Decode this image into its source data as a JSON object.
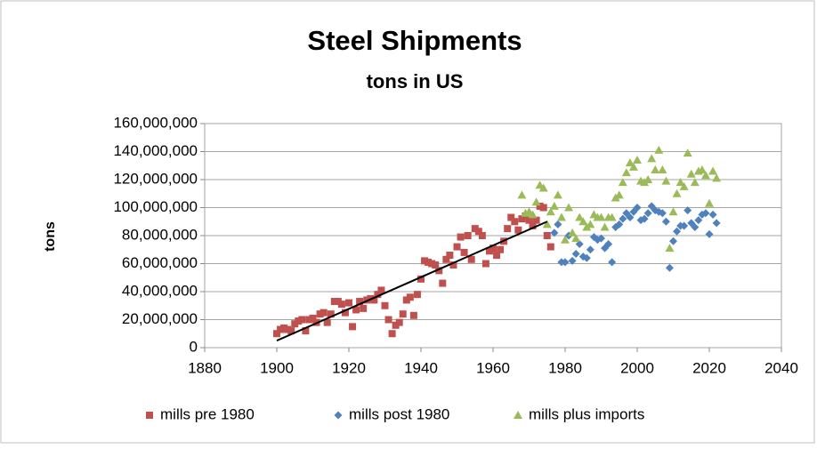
{
  "chart_data": {
    "type": "scatter",
    "title": "Steel Shipments",
    "subtitle": "tons in US",
    "y_label": "tons",
    "xlim": [
      1880,
      2040
    ],
    "xticks": [
      1880,
      1900,
      1920,
      1940,
      1960,
      1980,
      2000,
      2020,
      2040
    ],
    "ylim": [
      0,
      160000000
    ],
    "yticks": [
      {
        "value": 0,
        "label": "0"
      },
      {
        "value": 20000000,
        "label": "20,000,000"
      },
      {
        "value": 40000000,
        "label": "40,000,000"
      },
      {
        "value": 60000000,
        "label": "60,000,000"
      },
      {
        "value": 80000000,
        "label": "80,000,000"
      },
      {
        "value": 100000000,
        "label": "100,000,000"
      },
      {
        "value": 120000000,
        "label": "120,000,000"
      },
      {
        "value": 140000000,
        "label": "140,000,000"
      },
      {
        "value": 160000000,
        "label": "160,000,000"
      }
    ],
    "grid": true,
    "legend": "bottom",
    "series": [
      {
        "name": "mills pre 1980",
        "color": "#c0504d",
        "marker": "square",
        "x": [
          1900,
          1901,
          1902,
          1903,
          1904,
          1905,
          1906,
          1907,
          1908,
          1909,
          1910,
          1911,
          1912,
          1913,
          1914,
          1915,
          1916,
          1917,
          1918,
          1919,
          1920,
          1921,
          1922,
          1923,
          1924,
          1925,
          1926,
          1927,
          1928,
          1929,
          1930,
          1931,
          1932,
          1933,
          1934,
          1935,
          1936,
          1937,
          1938,
          1939,
          1940,
          1941,
          1942,
          1943,
          1944,
          1945,
          1946,
          1947,
          1948,
          1949,
          1950,
          1951,
          1952,
          1953,
          1954,
          1955,
          1956,
          1957,
          1958,
          1959,
          1960,
          1961,
          1962,
          1963,
          1964,
          1965,
          1966,
          1967,
          1968,
          1969,
          1970,
          1971,
          1972,
          1973,
          1974,
          1975,
          1976
        ],
        "values": [
          10000000,
          13000000,
          14000000,
          13000000,
          12000000,
          17000000,
          19000000,
          20000000,
          12000000,
          20000000,
          21000000,
          18000000,
          24000000,
          25000000,
          18000000,
          24000000,
          33000000,
          33000000,
          31000000,
          25000000,
          32000000,
          15000000,
          27000000,
          33000000,
          28000000,
          34000000,
          35000000,
          34000000,
          38000000,
          41000000,
          30000000,
          20000000,
          10000000,
          16000000,
          18000000,
          24000000,
          34000000,
          36000000,
          23000000,
          38000000,
          49000000,
          62000000,
          61000000,
          60000000,
          59000000,
          55000000,
          46000000,
          63000000,
          66000000,
          59000000,
          72000000,
          79000000,
          68000000,
          80000000,
          63000000,
          85000000,
          83000000,
          80000000,
          60000000,
          69000000,
          71000000,
          66000000,
          70000000,
          76000000,
          85000000,
          93000000,
          90000000,
          84000000,
          92000000,
          94000000,
          91000000,
          87000000,
          91000000,
          101000000,
          100000000,
          80000000,
          72000000
        ]
      },
      {
        "name": "mills post 1980",
        "color": "#4f81bd",
        "marker": "diamond",
        "x": [
          1977,
          1978,
          1979,
          1980,
          1981,
          1982,
          1983,
          1984,
          1985,
          1986,
          1987,
          1988,
          1989,
          1990,
          1991,
          1992,
          1993,
          1994,
          1995,
          1996,
          1997,
          1998,
          1999,
          2000,
          2001,
          2002,
          2003,
          2004,
          2005,
          2006,
          2007,
          2008,
          2009,
          2010,
          2011,
          2012,
          2013,
          2014,
          2015,
          2016,
          2017,
          2018,
          2019,
          2020,
          2021,
          2022
        ],
        "values": [
          82000000,
          88000000,
          61000000,
          61000000,
          80000000,
          62000000,
          67000000,
          74000000,
          65000000,
          64000000,
          70000000,
          79000000,
          77000000,
          78000000,
          71000000,
          74000000,
          61000000,
          86000000,
          88000000,
          92000000,
          96000000,
          93000000,
          97000000,
          100000000,
          91000000,
          92000000,
          96000000,
          101000000,
          98000000,
          97000000,
          96000000,
          90000000,
          57000000,
          76000000,
          83000000,
          87000000,
          87000000,
          98000000,
          89000000,
          86000000,
          91000000,
          95000000,
          96000000,
          81000000,
          95000000,
          89000000
        ]
      },
      {
        "name": "mills plus imports",
        "color": "#9bbb59",
        "marker": "triangle",
        "x": [
          1968,
          1969,
          1970,
          1971,
          1972,
          1973,
          1974,
          1975,
          1976,
          1977,
          1978,
          1979,
          1980,
          1981,
          1982,
          1983,
          1984,
          1985,
          1986,
          1987,
          1988,
          1989,
          1990,
          1991,
          1992,
          1993,
          1994,
          1995,
          1996,
          1997,
          1998,
          1999,
          2000,
          2001,
          2002,
          2003,
          2004,
          2005,
          2006,
          2007,
          2008,
          2009,
          2010,
          2011,
          2012,
          2013,
          2014,
          2015,
          2016,
          2017,
          2018,
          2019,
          2020,
          2021,
          2022
        ],
        "values": [
          109000000,
          96000000,
          97000000,
          95000000,
          104000000,
          116000000,
          114000000,
          88000000,
          97000000,
          101000000,
          109000000,
          93000000,
          77000000,
          100000000,
          82000000,
          78000000,
          93000000,
          90000000,
          86000000,
          88000000,
          95000000,
          93000000,
          93000000,
          86000000,
          93000000,
          93000000,
          107000000,
          109000000,
          118000000,
          125000000,
          132000000,
          129000000,
          134000000,
          119000000,
          118000000,
          120000000,
          135000000,
          127000000,
          141000000,
          127000000,
          119000000,
          71000000,
          97000000,
          110000000,
          118000000,
          115000000,
          139000000,
          124000000,
          118000000,
          126000000,
          127000000,
          123000000,
          103000000,
          126000000,
          121000000
        ]
      }
    ],
    "trendline": {
      "color": "#000000",
      "x": [
        1900,
        1975
      ],
      "values": [
        5000000,
        90000000
      ]
    }
  }
}
